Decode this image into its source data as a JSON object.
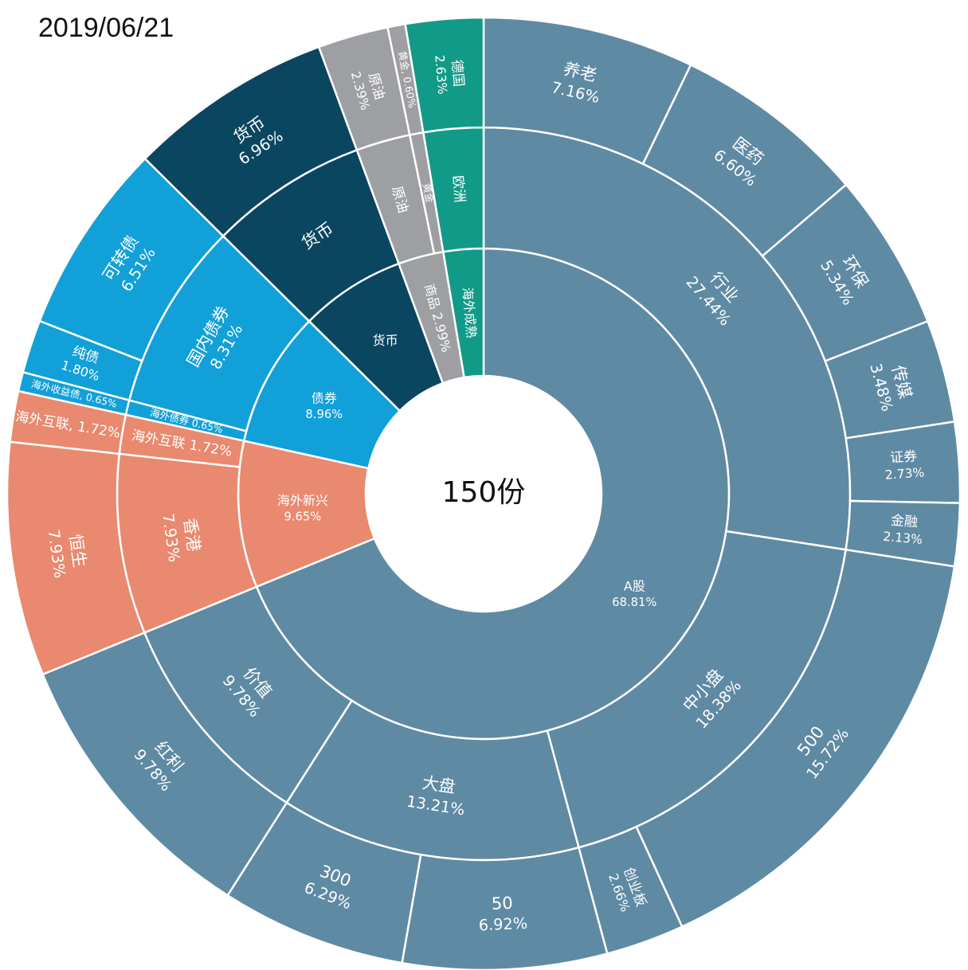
{
  "date": "2019/06/21",
  "colors": {
    "A股": "#5f8aa3",
    "海外新兴": "#e9896f",
    "债券": "#12a0d9",
    "货币": "#0b4660",
    "商品": "#9d9fa3",
    "海外成熟": "#119a87"
  },
  "chart_data": {
    "type": "sunburst",
    "center_label": "150份",
    "rings": [
      [
        {
          "name": "A股",
          "value": 68.81,
          "label": [
            "A股",
            "68.81%"
          ],
          "group": "A股"
        },
        {
          "name": "海外新兴",
          "value": 9.65,
          "label": [
            "海外新兴",
            "9.65%"
          ],
          "group": "海外新兴"
        },
        {
          "name": "债券",
          "value": 8.96,
          "label": [
            "债券",
            "8.96%"
          ],
          "group": "债券"
        },
        {
          "name": "货币",
          "value": 6.96,
          "label": [
            "货币"
          ],
          "group": "货币"
        },
        {
          "name": "商品",
          "value": 2.99,
          "label": [
            "商品 2.99%"
          ],
          "group": "商品"
        },
        {
          "name": "海外成熟",
          "value": 2.63,
          "label": [
            "海外成熟"
          ],
          "group": "海外成熟"
        }
      ],
      [
        {
          "name": "行业",
          "value": 27.44,
          "label": [
            "行业",
            "27.44%"
          ],
          "group": "A股"
        },
        {
          "name": "中小盘",
          "value": 18.38,
          "label": [
            "中小盘",
            "18.38%"
          ],
          "group": "A股"
        },
        {
          "name": "大盘",
          "value": 13.21,
          "label": [
            "大盘",
            "13.21%"
          ],
          "group": "A股"
        },
        {
          "name": "价值",
          "value": 9.78,
          "label": [
            "价值",
            "9.78%"
          ],
          "group": "A股"
        },
        {
          "name": "香港",
          "value": 7.93,
          "label": [
            "香港",
            "7.93%"
          ],
          "group": "海外新兴"
        },
        {
          "name": "海外互联",
          "value": 1.72,
          "label": [
            "海外互联 1.72%"
          ],
          "group": "海外新兴"
        },
        {
          "name": "海外债券",
          "value": 0.65,
          "label": [
            "海外债券 0.65%"
          ],
          "group": "债券"
        },
        {
          "name": "国内债券",
          "value": 8.31,
          "label": [
            "国内债券",
            "8.31%"
          ],
          "group": "债券"
        },
        {
          "name": "货币",
          "value": 6.96,
          "label": [
            "货币"
          ],
          "group": "货币"
        },
        {
          "name": "原油",
          "value": 2.39,
          "label": [
            "原油"
          ],
          "group": "商品"
        },
        {
          "name": "黄金",
          "value": 0.6,
          "label": [
            "黄金"
          ],
          "group": "商品"
        },
        {
          "name": "欧洲",
          "value": 2.63,
          "label": [
            "欧洲"
          ],
          "group": "海外成熟"
        }
      ],
      [
        {
          "name": "养老",
          "value": 7.16,
          "label": [
            "养老",
            "7.16%"
          ],
          "group": "A股"
        },
        {
          "name": "医药",
          "value": 6.6,
          "label": [
            "医药",
            "6.60%"
          ],
          "group": "A股"
        },
        {
          "name": "环保",
          "value": 5.34,
          "label": [
            "环保",
            "5.34%"
          ],
          "group": "A股"
        },
        {
          "name": "传媒",
          "value": 3.48,
          "label": [
            "传媒",
            "3.48%"
          ],
          "group": "A股"
        },
        {
          "name": "证券",
          "value": 2.73,
          "label": [
            "证券",
            "2.73%"
          ],
          "group": "A股"
        },
        {
          "name": "金融",
          "value": 2.13,
          "label": [
            "金融",
            "2.13%"
          ],
          "group": "A股"
        },
        {
          "name": "500",
          "value": 15.72,
          "label": [
            "500",
            "15.72%"
          ],
          "group": "A股"
        },
        {
          "name": "创业板",
          "value": 2.66,
          "label": [
            "创业板",
            "2.66%"
          ],
          "group": "A股"
        },
        {
          "name": "50",
          "value": 6.92,
          "label": [
            "50",
            "6.92%"
          ],
          "group": "A股"
        },
        {
          "name": "300",
          "value": 6.29,
          "label": [
            "300",
            "6.29%"
          ],
          "group": "A股"
        },
        {
          "name": "红利",
          "value": 9.78,
          "label": [
            "红利",
            "9.78%"
          ],
          "group": "A股"
        },
        {
          "name": "恒生",
          "value": 7.93,
          "label": [
            "恒生",
            "7.93%"
          ],
          "group": "海外新兴"
        },
        {
          "name": "海外互联",
          "value": 1.72,
          "label": [
            "海外互联, 1.72%"
          ],
          "group": "海外新兴"
        },
        {
          "name": "海外收益债",
          "value": 0.65,
          "label": [
            "海外收益债, 0.65%"
          ],
          "group": "债券"
        },
        {
          "name": "纯债",
          "value": 1.8,
          "label": [
            "纯债",
            "1.80%"
          ],
          "group": "债券"
        },
        {
          "name": "可转债",
          "value": 6.51,
          "label": [
            "可转债",
            "6.51%"
          ],
          "group": "债券"
        },
        {
          "name": "货币",
          "value": 6.96,
          "label": [
            "货币",
            "6.96%"
          ],
          "group": "货币"
        },
        {
          "name": "原油",
          "value": 2.39,
          "label": [
            "原油",
            "2.39%"
          ],
          "group": "商品"
        },
        {
          "name": "黄金",
          "value": 0.6,
          "label": [
            "黄金, 0.60%"
          ],
          "group": "商品"
        },
        {
          "name": "德国",
          "value": 2.63,
          "label": [
            "德国",
            "2.63%"
          ],
          "group": "海外成熟"
        }
      ]
    ]
  }
}
